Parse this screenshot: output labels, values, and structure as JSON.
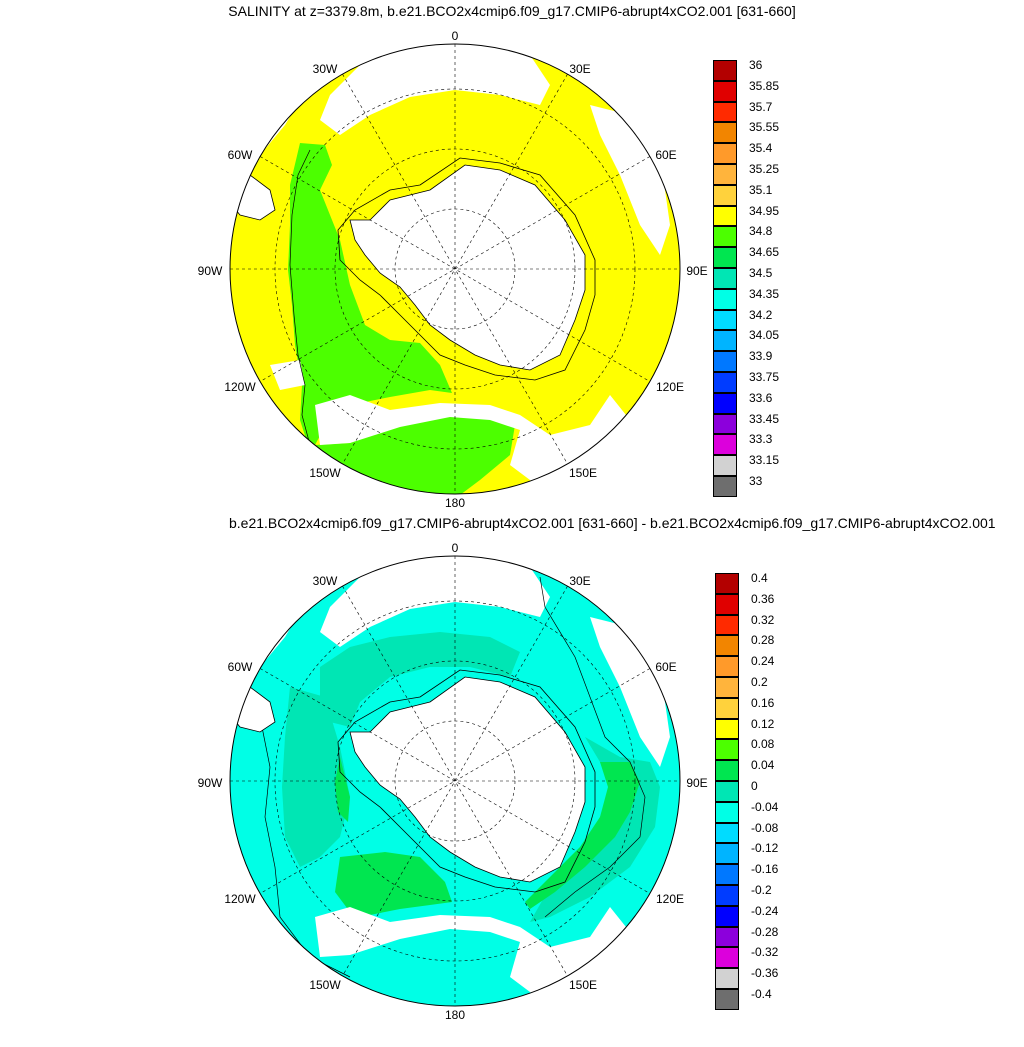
{
  "panel1": {
    "title": "SALINITY at z=3379.8m, b.e21.BCO2x4cmip6.f09_g17.CMIP6-abrupt4xCO2.001 [631-660]",
    "longitude_labels": {
      "top": "0",
      "n30w": "30W",
      "n30e": "30E",
      "w60": "60W",
      "e60": "60E",
      "w90": "90W",
      "e90": "90E",
      "w120": "120W",
      "e120": "120E",
      "w150": "150W",
      "e150": "150E",
      "bottom": "180"
    },
    "colorbar": {
      "labels": [
        "36",
        "35.85",
        "35.7",
        "35.55",
        "35.4",
        "35.25",
        "35.1",
        "34.95",
        "34.8",
        "34.65",
        "34.5",
        "34.35",
        "34.2",
        "34.05",
        "33.9",
        "33.75",
        "33.6",
        "33.45",
        "33.3",
        "33.15",
        "33"
      ],
      "colors": [
        "#b30000",
        "#e00000",
        "#ff2a00",
        "#f28500",
        "#ff9a2a",
        "#ffb43c",
        "#ffd23c",
        "#ffff00",
        "#4cff00",
        "#00e650",
        "#00e6b4",
        "#00ffe6",
        "#00dcff",
        "#00b4ff",
        "#0078ff",
        "#003cff",
        "#0000ff",
        "#8c00dc",
        "#dc00dc",
        "#d2d2d2",
        "#6e6e6e"
      ]
    },
    "fields": {
      "main_color": "#ffff00",
      "secondary_color": "#4cff00",
      "land_color": "#ffffff"
    }
  },
  "panel2": {
    "title": "b.e21.BCO2x4cmip6.f09_g17.CMIP6-abrupt4xCO2.001 [631-660] - b.e21.BCO2x4cmip6.f09_g17.CMIP6-abrupt4xCO2.001",
    "longitude_labels": {
      "top": "0",
      "n30w": "30W",
      "n30e": "30E",
      "w60": "60W",
      "e60": "60E",
      "w90": "90W",
      "e90": "90E",
      "w120": "120W",
      "e120": "120E",
      "w150": "150W",
      "e150": "150E",
      "bottom": "180"
    },
    "colorbar": {
      "labels": [
        "0.4",
        "0.36",
        "0.32",
        "0.28",
        "0.24",
        "0.2",
        "0.16",
        "0.12",
        "0.08",
        "0.04",
        "0",
        "-0.04",
        "-0.08",
        "-0.12",
        "-0.16",
        "-0.2",
        "-0.24",
        "-0.28",
        "-0.32",
        "-0.36",
        "-0.4"
      ],
      "colors": [
        "#b30000",
        "#e00000",
        "#ff2a00",
        "#f28500",
        "#ff9a2a",
        "#ffb43c",
        "#ffd23c",
        "#ffff00",
        "#4cff00",
        "#00e650",
        "#00e6b4",
        "#00ffe6",
        "#00dcff",
        "#00b4ff",
        "#0078ff",
        "#003cff",
        "#0000ff",
        "#8c00dc",
        "#dc00dc",
        "#d2d2d2",
        "#6e6e6e"
      ]
    },
    "fields": {
      "main_color": "#00ffe6",
      "secondary_color": "#00e6b4",
      "tertiary_color": "#00e650",
      "land_color": "#ffffff"
    }
  }
}
